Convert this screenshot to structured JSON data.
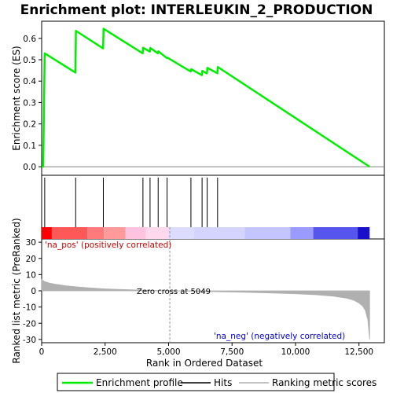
{
  "chart_data": {
    "type": "line",
    "title": "Enrichment plot: INTERLEUKIN_2_PRODUCTION",
    "xlabel": "Rank in Ordered Dataset",
    "ylabel_top": "Enrichment score (ES)",
    "ylabel_bottom": "Ranked list metric (PreRanked)",
    "xlim": [
      0,
      13500
    ],
    "es_ylim": [
      -0.04,
      0.68
    ],
    "metric_ylim": [
      -32,
      32
    ],
    "x_ticks": [
      0,
      2500,
      5000,
      7500,
      10000,
      12500
    ],
    "x_tick_labels": [
      "0",
      "2,500",
      "5,000",
      "7,500",
      "10,000",
      "12,500"
    ],
    "es_ticks": [
      0.0,
      0.1,
      0.2,
      0.3,
      0.4,
      0.5,
      0.6
    ],
    "es_tick_labels": [
      "0.0",
      "0.1",
      "0.2",
      "0.3",
      "0.4",
      "0.5",
      "0.6"
    ],
    "metric_ticks": [
      30,
      20,
      10,
      0,
      -10,
      -20,
      -30
    ],
    "metric_tick_labels": [
      "30",
      "20",
      "10",
      "0",
      "-10",
      "-20",
      "-30"
    ],
    "grid": false,
    "colors": {
      "enrichment": "#00ee00",
      "hits": "#000000",
      "metric": "#b0b0b0",
      "pos_label": "#cc0000",
      "neg_label": "#0000cc"
    },
    "series": [
      {
        "name": "Enrichment profile",
        "x": [
          0,
          60,
          120,
          1330,
          1350,
          2420,
          2440,
          3980,
          4000,
          4260,
          4280,
          4580,
          4600,
          4930,
          4950,
          5870,
          5890,
          6310,
          6330,
          6510,
          6530,
          6920,
          6940,
          12920
        ],
        "y": [
          0.0,
          0.0,
          0.53,
          0.44,
          0.635,
          0.553,
          0.645,
          0.53,
          0.556,
          0.538,
          0.555,
          0.53,
          0.539,
          0.508,
          0.51,
          0.445,
          0.456,
          0.428,
          0.448,
          0.436,
          0.462,
          0.437,
          0.466,
          0.0
        ]
      }
    ],
    "hits": [
      120,
      1340,
      2430,
      3990,
      4270,
      4590,
      4940,
      5880,
      6320,
      6520,
      6930
    ],
    "metric_curve": {
      "x": [
        0,
        100,
        300,
        600,
        1000,
        1500,
        2000,
        2500,
        3000,
        4000,
        5049,
        6000,
        7000,
        8000,
        9000,
        10000,
        10800,
        11500,
        12000,
        12300,
        12500,
        12650,
        12750,
        12850,
        12920
      ],
      "y": [
        7,
        5.8,
        4.8,
        3.9,
        3.0,
        2.3,
        1.7,
        1.2,
        0.9,
        0.4,
        0,
        -0.3,
        -0.6,
        -0.9,
        -1.3,
        -1.8,
        -2.4,
        -3.3,
        -4.5,
        -5.8,
        -7.5,
        -9.5,
        -12,
        -18,
        -30
      ]
    },
    "color_band": [
      {
        "from": 0,
        "to": 400,
        "color": "#ff0000"
      },
      {
        "from": 400,
        "to": 1800,
        "color": "#ff5858"
      },
      {
        "from": 1800,
        "to": 2450,
        "color": "#ff7a7a"
      },
      {
        "from": 2450,
        "to": 3300,
        "color": "#ff9a9a"
      },
      {
        "from": 3300,
        "to": 4100,
        "color": "#ffc2e0"
      },
      {
        "from": 4100,
        "to": 5000,
        "color": "#ffd8ee"
      },
      {
        "from": 5000,
        "to": 6000,
        "color": "#dcdcff"
      },
      {
        "from": 6000,
        "to": 8000,
        "color": "#d4d4ff"
      },
      {
        "from": 8000,
        "to": 9800,
        "color": "#c4c4ff"
      },
      {
        "from": 9800,
        "to": 10700,
        "color": "#9a9aff"
      },
      {
        "from": 10700,
        "to": 12450,
        "color": "#5656ee"
      },
      {
        "from": 12450,
        "to": 12920,
        "color": "#1a10c8"
      }
    ],
    "zero_cross": 5049,
    "annotations": {
      "pos": "'na_pos' (positively correlated)",
      "neg": "'na_neg' (negatively correlated)",
      "zero": "Zero cross at 5049"
    },
    "legend": {
      "placement": "bottom",
      "items": [
        "Enrichment profile",
        "Hits",
        "Ranking metric scores"
      ]
    }
  }
}
